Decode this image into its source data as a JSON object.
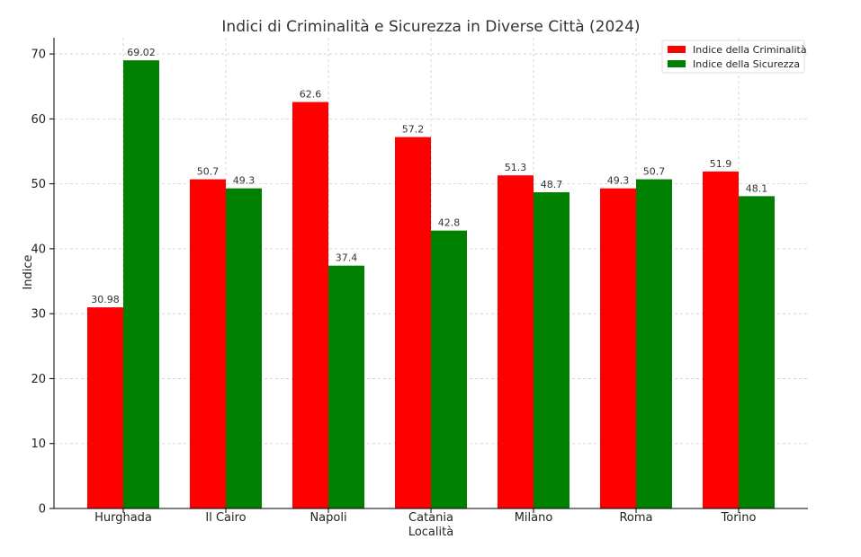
{
  "chart_data": {
    "type": "bar",
    "title": "Indici di Criminalità e Sicurezza in Diverse Città (2024)",
    "xlabel": "Località",
    "ylabel": "Indice",
    "categories": [
      "Hurghada",
      "Il Cairo",
      "Napoli",
      "Catania",
      "Milano",
      "Roma",
      "Torino"
    ],
    "series": [
      {
        "name": "Indice della Criminalità",
        "color": "#ff0000",
        "values": [
          30.98,
          50.7,
          62.6,
          57.2,
          51.3,
          49.3,
          51.9
        ],
        "labels": [
          "30.98",
          "50.7",
          "62.6",
          "57.2",
          "51.3",
          "49.3",
          "51.9"
        ]
      },
      {
        "name": "Indice della Sicurezza",
        "color": "#008000",
        "values": [
          69.02,
          49.3,
          37.4,
          42.8,
          48.7,
          50.7,
          48.1
        ],
        "labels": [
          "69.02",
          "49.3",
          "37.4",
          "42.8",
          "48.7",
          "50.7",
          "48.1"
        ]
      }
    ],
    "ylim": [
      0,
      72.5
    ],
    "yticks": [
      0,
      10,
      20,
      30,
      40,
      50,
      60,
      70
    ],
    "ytick_labels": [
      "0",
      "10",
      "20",
      "30",
      "40",
      "50",
      "60",
      "70"
    ],
    "grid": true,
    "legend_position": "top-right"
  }
}
